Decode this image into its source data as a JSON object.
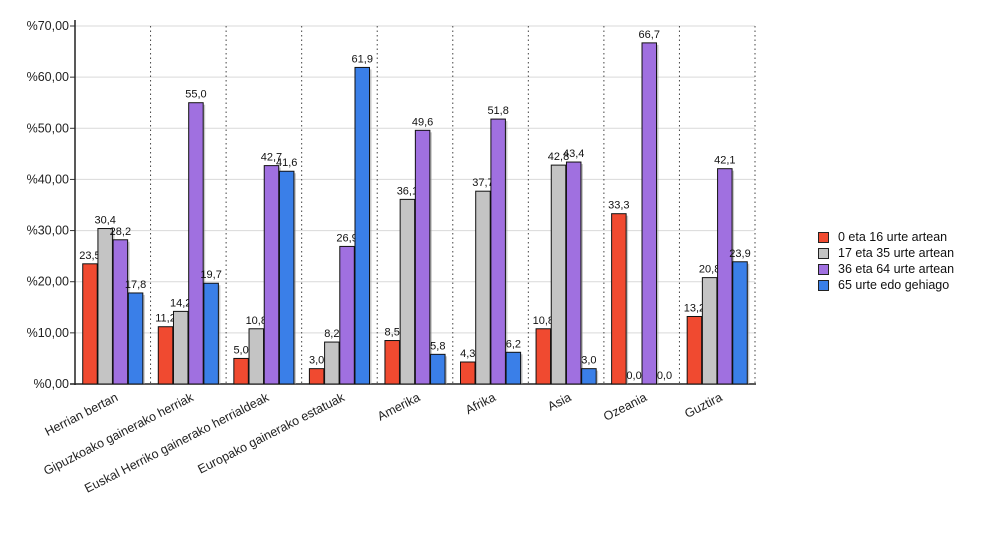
{
  "chart_data": {
    "type": "bar",
    "title": "",
    "xlabel": "",
    "ylabel": "",
    "ylim": [
      0,
      70
    ],
    "yticks": [
      "%0,00",
      "%10,00",
      "%20,00",
      "%30,00",
      "%40,00",
      "%50,00",
      "%60,00",
      "%70,00"
    ],
    "grid": "horizontal solid, vertical dotted",
    "legend_position": "right",
    "categories": [
      "Herrian bertan",
      "Gipuzkoako gainerako herriak",
      "Euskal Herriko gainerako herrialdeak",
      "Europako gainerako estatuak",
      "Amerika",
      "Afrika",
      "Asia",
      "Ozeania",
      "Guztira"
    ],
    "series": [
      {
        "name": "0 eta 16 urte artean",
        "color": "#f04a30",
        "values": [
          23.5,
          11.2,
          5.0,
          3.0,
          8.5,
          4.3,
          10.8,
          33.3,
          13.2
        ],
        "labels": [
          "23,5",
          "11,2",
          "5,0",
          "3,0",
          "8,5",
          "4,3",
          "10,8",
          "33,3",
          "13,2"
        ]
      },
      {
        "name": "17 eta 35 urte artean",
        "color": "#c4c4c4",
        "values": [
          30.4,
          14.2,
          10.8,
          8.2,
          36.1,
          37.7,
          42.8,
          0.0,
          20.8
        ],
        "labels": [
          "30,4",
          "14,2",
          "10,8",
          "8,2",
          "36,1",
          "37,7",
          "42,8",
          "0,0",
          "20,8"
        ]
      },
      {
        "name": "36 eta 64 urte artean",
        "color": "#a070e0",
        "values": [
          28.2,
          55.0,
          42.7,
          26.9,
          49.6,
          51.8,
          43.4,
          66.7,
          42.1
        ],
        "labels": [
          "28,2",
          "55,0",
          "42,7",
          "26,9",
          "49,6",
          "51,8",
          "43,4",
          "66,7",
          "42,1"
        ]
      },
      {
        "name": "65 urte edo gehiago",
        "color": "#3a7fe8",
        "values": [
          17.8,
          19.7,
          41.6,
          61.9,
          5.8,
          6.2,
          3.0,
          0.0,
          23.9
        ],
        "labels": [
          "17,8",
          "19,7",
          "41,6",
          "61,9",
          "5,8",
          "6,2",
          "3,0",
          "0,0",
          "23,9"
        ]
      }
    ]
  }
}
